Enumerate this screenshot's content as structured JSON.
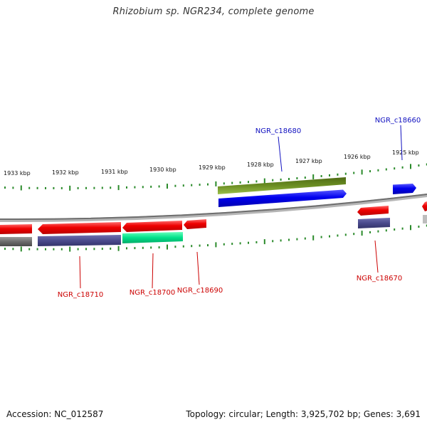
{
  "title": "Rhizobium sp. NGR234, complete genome",
  "footer": {
    "accession": "Accession: NC_012587",
    "summary": "Topology: circular; Length: 3,925,702 bp; Genes: 3,691"
  },
  "scale_labels": [
    "1933 kbp",
    "1932 kbp",
    "1931 kbp",
    "1930 kbp",
    "1929 kbp",
    "1928 kbp",
    "1927 kbp",
    "1926 kbp",
    "1925 kbp"
  ],
  "gene_labels": [
    "NGR_c18680",
    "NGR_c18660",
    "NGR_c18710",
    "NGR_c18700",
    "NGR_c18690",
    "NGR_c18670"
  ],
  "colors": {
    "forward_label": "#1010c0",
    "reverse_label": "#cc0000",
    "forward_gene": "#0000ee",
    "reverse_gene": "#ee0000",
    "cds_slate": "#4a4a8c",
    "cds_green": "#00e08a",
    "cds_olive": "#6b8e23",
    "ticks": "#2a8a2a",
    "backbone": "#888888"
  }
}
